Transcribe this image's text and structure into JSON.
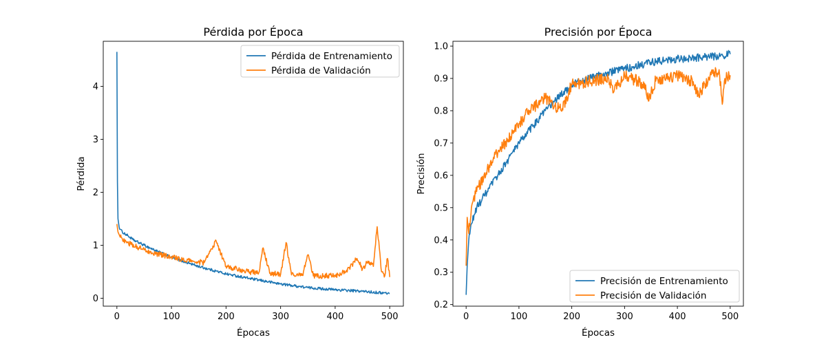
{
  "chart_data": [
    {
      "type": "line",
      "title": "Pérdida por Época",
      "xlabel": "Épocas",
      "ylabel": "Pérdida",
      "xlim": [
        -25,
        525
      ],
      "ylim": [
        -0.15,
        4.85
      ],
      "xticks": [
        0,
        100,
        200,
        300,
        400,
        500
      ],
      "yticks": [
        0,
        1,
        2,
        3,
        4
      ],
      "grid": false,
      "legend_position": "top-right",
      "series": [
        {
          "name": "Pérdida de Entrenamiento",
          "color": "#1f77b4",
          "noise": 0.025,
          "x": [
            0,
            1,
            2,
            4,
            6,
            10,
            20,
            30,
            50,
            75,
            100,
            150,
            200,
            250,
            300,
            350,
            400,
            450,
            500
          ],
          "y": [
            4.65,
            2.2,
            1.5,
            1.35,
            1.3,
            1.25,
            1.18,
            1.1,
            1.0,
            0.88,
            0.77,
            0.6,
            0.46,
            0.36,
            0.27,
            0.2,
            0.16,
            0.13,
            0.09
          ]
        },
        {
          "name": "Pérdida de Validación",
          "color": "#ff7f0e",
          "noise": 0.05,
          "x": [
            0,
            2,
            5,
            10,
            20,
            40,
            60,
            80,
            100,
            120,
            140,
            160,
            182,
            200,
            220,
            240,
            260,
            268,
            280,
            300,
            310,
            320,
            340,
            350,
            360,
            380,
            400,
            420,
            440,
            450,
            460,
            470,
            477,
            485,
            490,
            496,
            500
          ],
          "y": [
            1.4,
            1.25,
            1.18,
            1.12,
            1.05,
            0.95,
            0.88,
            0.82,
            0.78,
            0.72,
            0.7,
            0.67,
            1.08,
            0.6,
            0.55,
            0.5,
            0.48,
            0.95,
            0.47,
            0.45,
            1.05,
            0.44,
            0.43,
            0.82,
            0.42,
            0.42,
            0.43,
            0.5,
            0.75,
            0.55,
            0.7,
            0.6,
            1.35,
            0.5,
            0.4,
            0.75,
            0.4
          ]
        }
      ]
    },
    {
      "type": "line",
      "title": "Precisión por Época",
      "xlabel": "Épocas",
      "ylabel": "Precisión",
      "xlim": [
        -25,
        525
      ],
      "ylim": [
        0.195,
        1.015
      ],
      "xticks": [
        0,
        100,
        200,
        300,
        400,
        500
      ],
      "yticks": [
        0.2,
        0.3,
        0.4,
        0.5,
        0.6,
        0.7,
        0.8,
        0.9,
        1.0
      ],
      "grid": false,
      "legend_position": "bottom-right",
      "series": [
        {
          "name": "Precisión de Entrenamiento",
          "color": "#1f77b4",
          "noise": 0.012,
          "x": [
            0,
            2,
            5,
            10,
            20,
            40,
            60,
            80,
            100,
            120,
            150,
            180,
            200,
            250,
            300,
            350,
            400,
            450,
            500
          ],
          "y": [
            0.23,
            0.32,
            0.4,
            0.45,
            0.5,
            0.55,
            0.6,
            0.65,
            0.7,
            0.74,
            0.8,
            0.85,
            0.88,
            0.91,
            0.93,
            0.95,
            0.96,
            0.965,
            0.975
          ]
        },
        {
          "name": "Precisión de Validación",
          "color": "#ff7f0e",
          "noise": 0.018,
          "x": [
            0,
            2,
            5,
            10,
            20,
            40,
            60,
            80,
            100,
            120,
            150,
            180,
            200,
            230,
            270,
            280,
            300,
            340,
            345,
            360,
            380,
            400,
            430,
            440,
            460,
            470,
            480,
            485,
            490,
            500
          ],
          "y": [
            0.32,
            0.47,
            0.42,
            0.5,
            0.55,
            0.62,
            0.67,
            0.71,
            0.76,
            0.8,
            0.84,
            0.8,
            0.88,
            0.89,
            0.9,
            0.86,
            0.91,
            0.88,
            0.83,
            0.9,
            0.9,
            0.91,
            0.89,
            0.85,
            0.9,
            0.92,
            0.91,
            0.82,
            0.9,
            0.91
          ]
        }
      ]
    }
  ]
}
